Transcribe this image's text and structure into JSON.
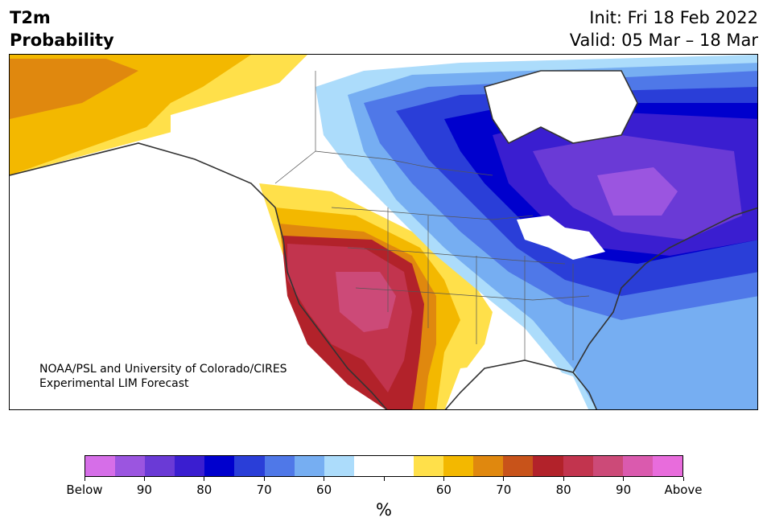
{
  "header": {
    "title_line1": "T2m",
    "title_line2": "Probability",
    "init": "Init: Fri 18 Feb 2022",
    "valid": "Valid: 05 Mar – 18 Mar"
  },
  "credit": {
    "line1": "NOAA/PSL and University of Colorado/CIRES",
    "line2": "Experimental LIM Forecast"
  },
  "colorbar": {
    "colors": [
      "#d66ee8",
      "#9b55e0",
      "#6a3ad6",
      "#3a1ed0",
      "#0000cd",
      "#2a3ed8",
      "#4f78e8",
      "#76aef2",
      "#acdcfb",
      "#ffffff",
      "#ffffff",
      "#ffe04a",
      "#f3b800",
      "#e0880e",
      "#c8531a",
      "#b2222a",
      "#c2344e",
      "#cc4a78",
      "#da5aae",
      "#e86cdc"
    ],
    "labels": [
      "Below",
      "90",
      "80",
      "70",
      "60",
      "60",
      "70",
      "80",
      "90",
      "Above"
    ],
    "unit": "%"
  }
}
